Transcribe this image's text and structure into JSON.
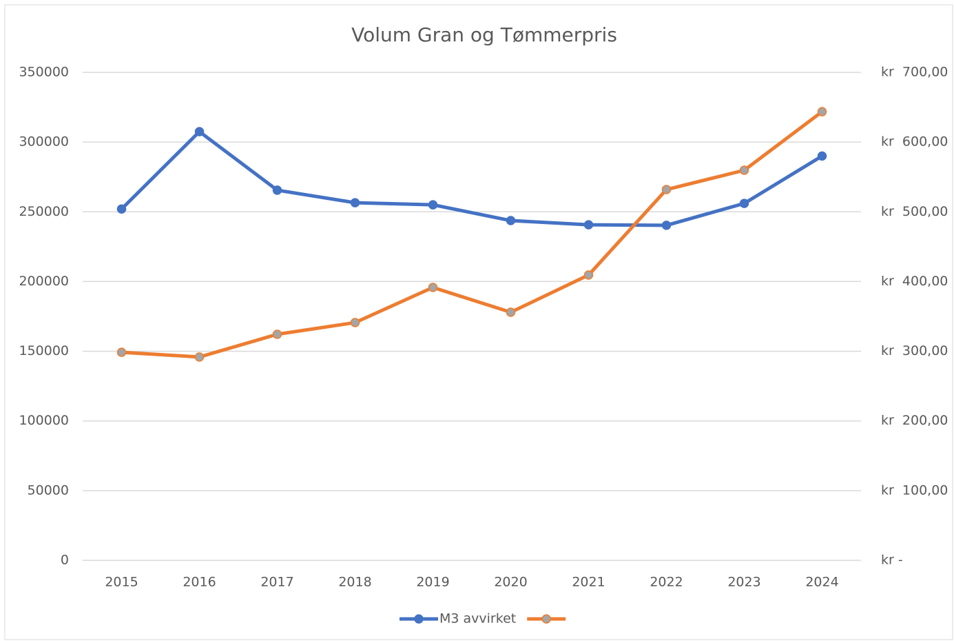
{
  "chart_data": {
    "type": "line",
    "title": "Volum Gran og Tømmerpris",
    "categories": [
      "2015",
      "2016",
      "2017",
      "2018",
      "2019",
      "2020",
      "2021",
      "2022",
      "2023",
      "2024"
    ],
    "series": [
      {
        "name": "M3 avvirket",
        "color": "#4472c4",
        "marker_color": "#4472c4",
        "values": [
          252000,
          307500,
          265500,
          256500,
          255000,
          243700,
          240700,
          240300,
          256000,
          290000
        ]
      },
      {
        "color": "#ed7d31",
        "marker_color": "#a5a5a5",
        "axis": "y2",
        "values": [
          298.5,
          291.7,
          324.3,
          341.1,
          391.5,
          355.9,
          409.3,
          531.9,
          559.6,
          643.6
        ]
      }
    ],
    "ylim": [
      0,
      350000
    ],
    "yticks": [
      0,
      50000,
      100000,
      150000,
      200000,
      250000,
      300000,
      350000
    ],
    "y2lim": [
      0,
      700
    ],
    "y2ticks": [
      {
        "value": 0,
        "label": "kr -"
      },
      {
        "value": 100,
        "label": "kr  100,00"
      },
      {
        "value": 200,
        "label": "kr  200,00"
      },
      {
        "value": 300,
        "label": "kr  300,00"
      },
      {
        "value": 400,
        "label": "kr  400,00"
      },
      {
        "value": 500,
        "label": "kr  500,00"
      },
      {
        "value": 600,
        "label": "kr  600,00"
      },
      {
        "value": 700,
        "label": "kr  700,00"
      }
    ],
    "grid": true,
    "legend": "bottom"
  }
}
